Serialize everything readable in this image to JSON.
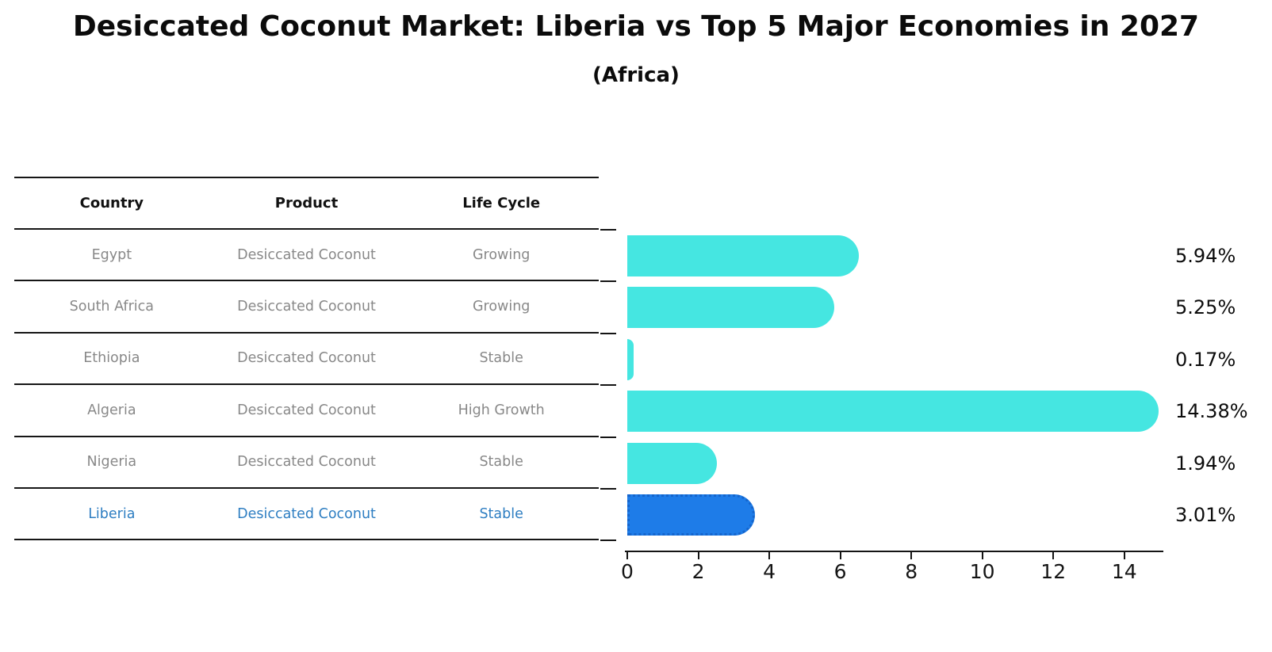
{
  "title": "Desiccated Coconut Market: Liberia vs Top 5 Major Economies in 2027",
  "subtitle": "(Africa)",
  "table": {
    "headers": [
      "Country",
      "Product",
      "Life Cycle"
    ],
    "rows": [
      {
        "country": "Egypt",
        "product": "Desiccated Coconut",
        "life_cycle": "Growing",
        "highlight": false
      },
      {
        "country": "South Africa",
        "product": "Desiccated Coconut",
        "life_cycle": "Growing",
        "highlight": false
      },
      {
        "country": "Ethiopia",
        "product": "Desiccated Coconut",
        "life_cycle": "Stable",
        "highlight": false
      },
      {
        "country": "Algeria",
        "product": "Desiccated Coconut",
        "life_cycle": "High Growth",
        "highlight": false
      },
      {
        "country": "Nigeria",
        "product": "Desiccated Coconut",
        "life_cycle": "Stable",
        "highlight": false
      },
      {
        "country": "Liberia",
        "product": "Desiccated Coconut",
        "life_cycle": "Stable",
        "highlight": true
      }
    ]
  },
  "chart_data": {
    "type": "bar",
    "orientation": "horizontal",
    "categories": [
      "Egypt",
      "South Africa",
      "Ethiopia",
      "Algeria",
      "Nigeria",
      "Liberia"
    ],
    "values": [
      5.94,
      5.25,
      0.17,
      14.38,
      1.94,
      3.01
    ],
    "value_labels": [
      "5.94%",
      "5.25%",
      "0.17%",
      "14.38%",
      "1.94%",
      "3.01%"
    ],
    "x_ticks": [
      0,
      2,
      4,
      6,
      8,
      10,
      12,
      14
    ],
    "xlim": [
      0,
      15.1
    ],
    "grid": false,
    "legend": false,
    "bar_color": "#45e6e1",
    "highlight_index": 5,
    "highlight_bar_color": "#1e7ce8",
    "highlight_bar_edge_color": "#1565cc",
    "highlight_text_color": "#2e7ec2",
    "value_label_color": "#0c0c0c"
  }
}
